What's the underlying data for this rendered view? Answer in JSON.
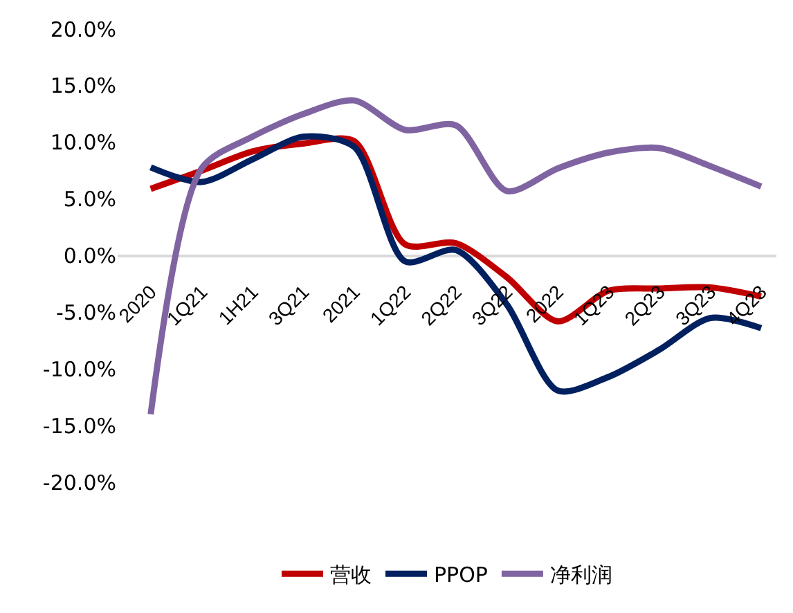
{
  "chart_data": {
    "type": "line",
    "categories": [
      "2020",
      "1Q21",
      "1H21",
      "3Q21",
      "2021",
      "1Q22",
      "2Q22",
      "3Q22",
      "2022",
      "1Q23",
      "2Q23",
      "3Q23",
      "4Q23"
    ],
    "series": [
      {
        "name": "营收",
        "color": "#c00000",
        "values": [
          5.9,
          7.5,
          9.2,
          9.9,
          10.1,
          1.0,
          1.1,
          -1.9,
          -5.8,
          -3.1,
          -2.9,
          -2.8,
          -3.6
        ]
      },
      {
        "name": "PPOP",
        "color": "#002060",
        "values": [
          7.8,
          6.5,
          8.5,
          10.5,
          9.6,
          -0.5,
          0.5,
          -4.3,
          -11.9,
          -10.7,
          -8.3,
          -5.5,
          -6.4
        ]
      },
      {
        "name": "净利润",
        "color": "#8064a2",
        "values": [
          -14.0,
          7.7,
          10.5,
          12.5,
          13.7,
          11.1,
          11.5,
          5.7,
          7.7,
          9.1,
          9.5,
          7.9,
          6.1
        ]
      }
    ],
    "ylim": [
      -20,
      20
    ],
    "yticks": [
      {
        "value": 20,
        "label": "20.0%"
      },
      {
        "value": 15,
        "label": "15.0%"
      },
      {
        "value": 10,
        "label": "10.0%"
      },
      {
        "value": 5,
        "label": "5.0%"
      },
      {
        "value": 0,
        "label": "0.0%"
      },
      {
        "value": -5,
        "label": "-5.0%"
      },
      {
        "value": -10,
        "label": "-10.0%"
      },
      {
        "value": -15,
        "label": "-15.0%"
      },
      {
        "value": -20,
        "label": "-20.0%"
      }
    ],
    "legend": "bottom",
    "marker": "none",
    "line_style": "solid"
  }
}
